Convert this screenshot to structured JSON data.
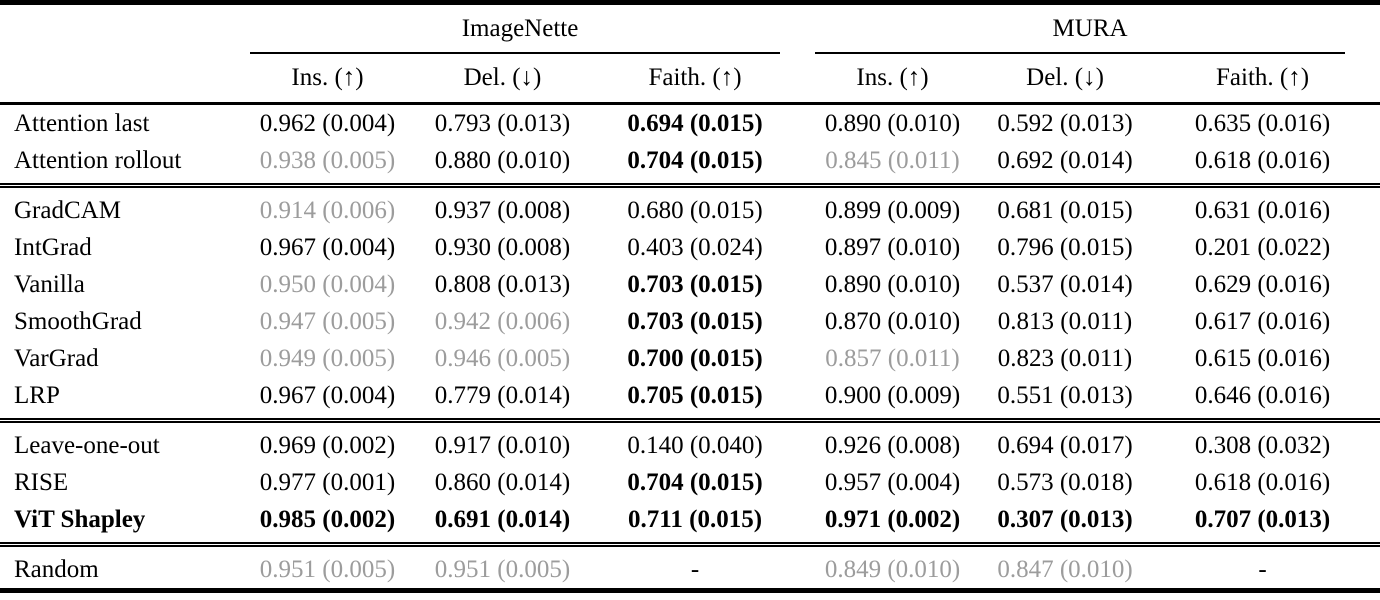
{
  "table": {
    "dataset_groups": [
      {
        "label": "ImageNette"
      },
      {
        "label": "MURA"
      }
    ],
    "metric_headers": [
      "Ins. (↑)",
      "Del. (↓)",
      "Faith. (↑)",
      "Ins. (↑)",
      "Del. (↓)",
      "Faith. (↑)"
    ],
    "missing_value": "-",
    "row_groups": [
      {
        "rows": [
          {
            "method": "Attention last",
            "bold": false,
            "cells": [
              {
                "value": "0.962 (0.004)",
                "style": "normal"
              },
              {
                "value": "0.793 (0.013)",
                "style": "normal"
              },
              {
                "value": "0.694 (0.015)",
                "style": "bold"
              },
              {
                "value": "0.890 (0.010)",
                "style": "normal"
              },
              {
                "value": "0.592 (0.013)",
                "style": "normal"
              },
              {
                "value": "0.635 (0.016)",
                "style": "normal"
              }
            ]
          },
          {
            "method": "Attention rollout",
            "bold": false,
            "cells": [
              {
                "value": "0.938 (0.005)",
                "style": "muted"
              },
              {
                "value": "0.880 (0.010)",
                "style": "normal"
              },
              {
                "value": "0.704 (0.015)",
                "style": "bold"
              },
              {
                "value": "0.845 (0.011)",
                "style": "muted"
              },
              {
                "value": "0.692 (0.014)",
                "style": "normal"
              },
              {
                "value": "0.618 (0.016)",
                "style": "normal"
              }
            ]
          }
        ]
      },
      {
        "rows": [
          {
            "method": "GradCAM",
            "bold": false,
            "cells": [
              {
                "value": "0.914 (0.006)",
                "style": "muted"
              },
              {
                "value": "0.937 (0.008)",
                "style": "normal"
              },
              {
                "value": "0.680 (0.015)",
                "style": "normal"
              },
              {
                "value": "0.899 (0.009)",
                "style": "normal"
              },
              {
                "value": "0.681 (0.015)",
                "style": "normal"
              },
              {
                "value": "0.631 (0.016)",
                "style": "normal"
              }
            ]
          },
          {
            "method": "IntGrad",
            "bold": false,
            "cells": [
              {
                "value": "0.967 (0.004)",
                "style": "normal"
              },
              {
                "value": "0.930 (0.008)",
                "style": "normal"
              },
              {
                "value": "0.403 (0.024)",
                "style": "normal"
              },
              {
                "value": "0.897 (0.010)",
                "style": "normal"
              },
              {
                "value": "0.796 (0.015)",
                "style": "normal"
              },
              {
                "value": "0.201 (0.022)",
                "style": "normal"
              }
            ]
          },
          {
            "method": "Vanilla",
            "bold": false,
            "cells": [
              {
                "value": "0.950 (0.004)",
                "style": "muted"
              },
              {
                "value": "0.808 (0.013)",
                "style": "normal"
              },
              {
                "value": "0.703 (0.015)",
                "style": "bold"
              },
              {
                "value": "0.890 (0.010)",
                "style": "normal"
              },
              {
                "value": "0.537 (0.014)",
                "style": "normal"
              },
              {
                "value": "0.629 (0.016)",
                "style": "normal"
              }
            ]
          },
          {
            "method": "SmoothGrad",
            "bold": false,
            "cells": [
              {
                "value": "0.947 (0.005)",
                "style": "muted"
              },
              {
                "value": "0.942 (0.006)",
                "style": "muted"
              },
              {
                "value": "0.703 (0.015)",
                "style": "bold"
              },
              {
                "value": "0.870 (0.010)",
                "style": "normal"
              },
              {
                "value": "0.813 (0.011)",
                "style": "normal"
              },
              {
                "value": "0.617 (0.016)",
                "style": "normal"
              }
            ]
          },
          {
            "method": "VarGrad",
            "bold": false,
            "cells": [
              {
                "value": "0.949 (0.005)",
                "style": "muted"
              },
              {
                "value": "0.946 (0.005)",
                "style": "muted"
              },
              {
                "value": "0.700 (0.015)",
                "style": "bold"
              },
              {
                "value": "0.857 (0.011)",
                "style": "muted"
              },
              {
                "value": "0.823 (0.011)",
                "style": "normal"
              },
              {
                "value": "0.615 (0.016)",
                "style": "normal"
              }
            ]
          },
          {
            "method": "LRP",
            "bold": false,
            "cells": [
              {
                "value": "0.967 (0.004)",
                "style": "normal"
              },
              {
                "value": "0.779 (0.014)",
                "style": "normal"
              },
              {
                "value": "0.705 (0.015)",
                "style": "bold"
              },
              {
                "value": "0.900 (0.009)",
                "style": "normal"
              },
              {
                "value": "0.551 (0.013)",
                "style": "normal"
              },
              {
                "value": "0.646 (0.016)",
                "style": "normal"
              }
            ]
          }
        ]
      },
      {
        "rows": [
          {
            "method": "Leave-one-out",
            "bold": false,
            "cells": [
              {
                "value": "0.969 (0.002)",
                "style": "normal"
              },
              {
                "value": "0.917 (0.010)",
                "style": "normal"
              },
              {
                "value": "0.140 (0.040)",
                "style": "normal"
              },
              {
                "value": "0.926 (0.008)",
                "style": "normal"
              },
              {
                "value": "0.694 (0.017)",
                "style": "normal"
              },
              {
                "value": "0.308 (0.032)",
                "style": "normal"
              }
            ]
          },
          {
            "method": "RISE",
            "bold": false,
            "cells": [
              {
                "value": "0.977 (0.001)",
                "style": "normal"
              },
              {
                "value": "0.860 (0.014)",
                "style": "normal"
              },
              {
                "value": "0.704 (0.015)",
                "style": "bold"
              },
              {
                "value": "0.957 (0.004)",
                "style": "normal"
              },
              {
                "value": "0.573 (0.018)",
                "style": "normal"
              },
              {
                "value": "0.618 (0.016)",
                "style": "normal"
              }
            ]
          },
          {
            "method": "ViT Shapley",
            "bold": true,
            "cells": [
              {
                "value": "0.985 (0.002)",
                "style": "bold"
              },
              {
                "value": "0.691 (0.014)",
                "style": "bold"
              },
              {
                "value": "0.711 (0.015)",
                "style": "bold"
              },
              {
                "value": "0.971 (0.002)",
                "style": "bold"
              },
              {
                "value": "0.307 (0.013)",
                "style": "bold"
              },
              {
                "value": "0.707 (0.013)",
                "style": "bold"
              }
            ]
          }
        ]
      },
      {
        "rows": [
          {
            "method": "Random",
            "bold": false,
            "cells": [
              {
                "value": "0.951 (0.005)",
                "style": "muted"
              },
              {
                "value": "0.951 (0.005)",
                "style": "muted"
              },
              {
                "value": "-",
                "style": "normal"
              },
              {
                "value": "0.849 (0.010)",
                "style": "muted"
              },
              {
                "value": "0.847 (0.010)",
                "style": "muted"
              },
              {
                "value": "-",
                "style": "normal"
              }
            ]
          }
        ]
      }
    ]
  },
  "colors": {
    "text": "#000000",
    "muted_value": "#9c9c9c",
    "background": "#ffffff",
    "rule": "#000000"
  }
}
